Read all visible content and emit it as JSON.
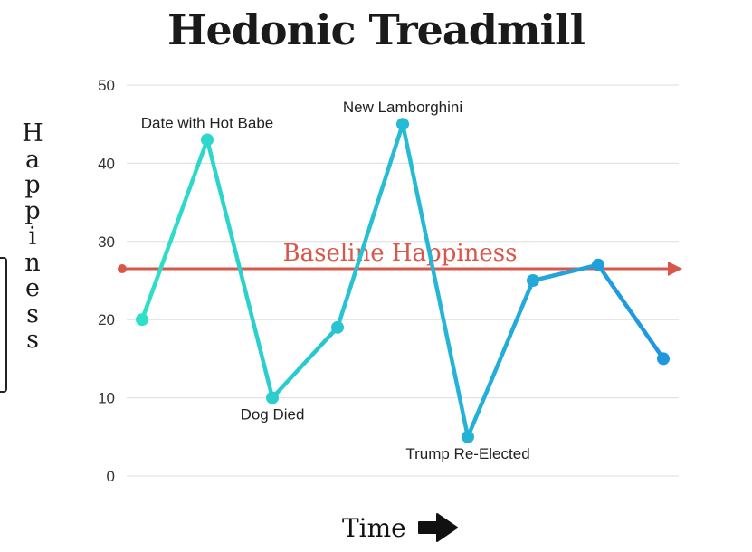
{
  "chart_data": {
    "type": "line",
    "title": "Hedonic Treadmill",
    "xlabel": "Time",
    "ylabel": "Happiness",
    "ylim": [
      0,
      50
    ],
    "yticks": [
      0,
      10,
      20,
      30,
      40,
      50
    ],
    "grid": true,
    "x": [
      1,
      2,
      3,
      4,
      5,
      6,
      7,
      8,
      9
    ],
    "series": [
      {
        "values": [
          20,
          43,
          10,
          19,
          45,
          5,
          25,
          27,
          15
        ]
      }
    ],
    "annotations": [
      {
        "point": 1,
        "text": "Date with Hot Babe"
      },
      {
        "point": 2,
        "text": "Dog Died"
      },
      {
        "point": 4,
        "text": "New Lamborghini"
      },
      {
        "point": 5,
        "text": "Trump Re-Elected"
      }
    ],
    "baseline": {
      "value": 26.5,
      "label": "Baseline Happiness",
      "color": "#d9574a"
    },
    "colors": {
      "line_start": "#2ee0c8",
      "line_end": "#1e96e0",
      "grid": "#dddddd"
    }
  }
}
